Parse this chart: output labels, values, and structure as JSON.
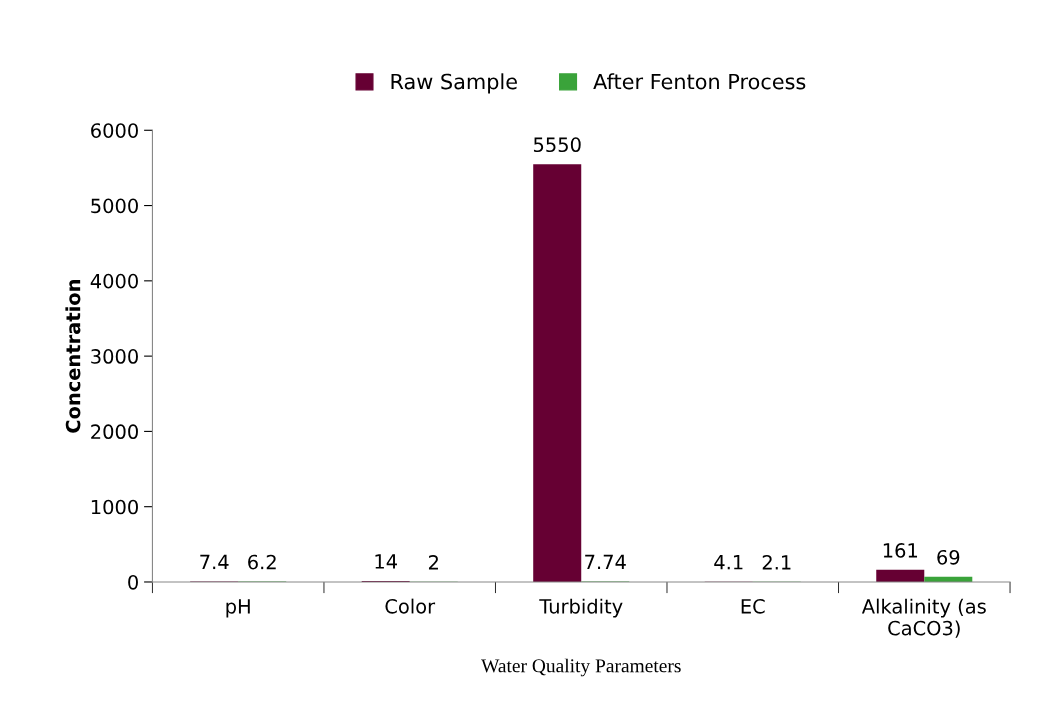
{
  "chart_data": {
    "type": "bar",
    "xlabel": "Water Quality Parameters",
    "ylabel": "Concentration",
    "categories": [
      "pH",
      "Color",
      "Turbidity",
      "EC",
      "Alkalinity (as\nCaCO3)"
    ],
    "series": [
      {
        "name": "Raw Sample",
        "color": "#660033",
        "values": [
          7.4,
          14,
          5550,
          4.1,
          161
        ]
      },
      {
        "name": "After Fenton Process",
        "color": "#3aa33a",
        "values": [
          6.2,
          2,
          7.74,
          2.1,
          69
        ]
      }
    ],
    "ylim": [
      0,
      6000
    ],
    "yticks": [
      0,
      1000,
      2000,
      3000,
      4000,
      5000,
      6000
    ],
    "data_labels": true,
    "legend": "top",
    "grid": false
  }
}
